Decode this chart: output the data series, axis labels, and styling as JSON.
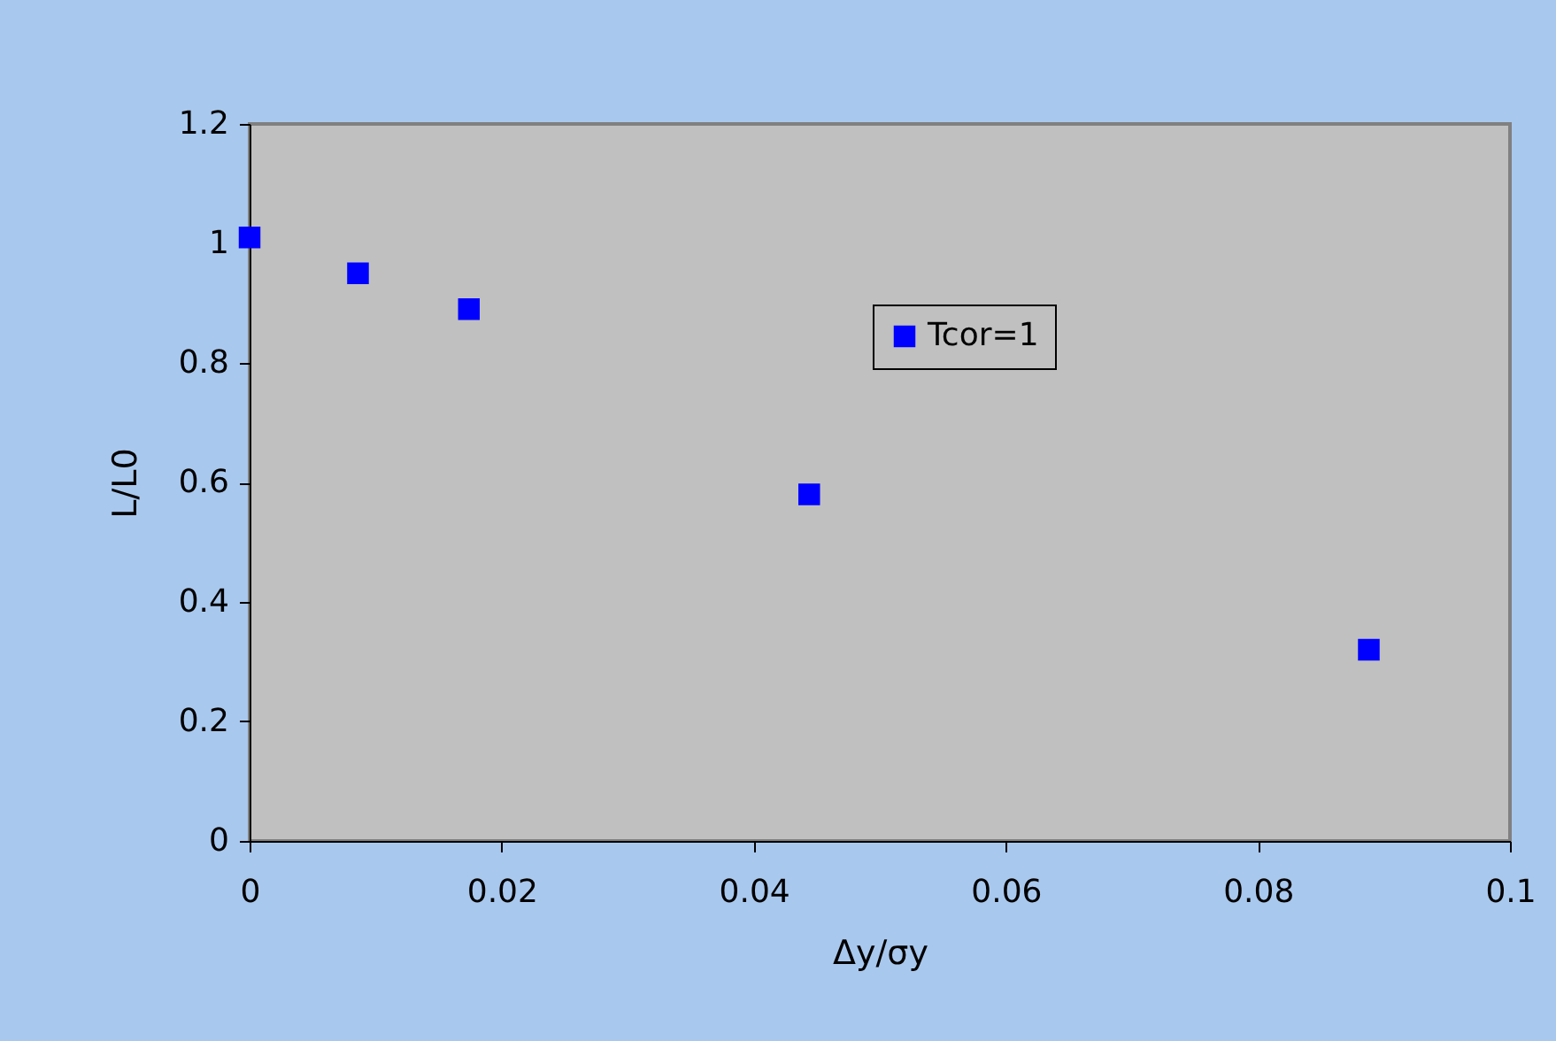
{
  "chart_data": {
    "type": "scatter",
    "xlabel": "Δy/σy",
    "ylabel": "L/L0",
    "x": [
      0,
      0.0086,
      0.0174,
      0.0444,
      0.0888
    ],
    "series": [
      {
        "name": "Tcor=1",
        "color": "#0000ff",
        "values": [
          1.01,
          0.95,
          0.89,
          0.58,
          0.32
        ]
      }
    ],
    "xlim": [
      0,
      0.1
    ],
    "xticks": [
      0,
      0.02,
      0.04,
      0.06,
      0.08,
      0.1
    ],
    "ylim": [
      0,
      1.2
    ],
    "yticks": [
      0,
      0.2,
      0.4,
      0.6,
      0.8,
      1,
      1.2
    ],
    "grid": false,
    "legend": "top right",
    "marker": "square"
  }
}
